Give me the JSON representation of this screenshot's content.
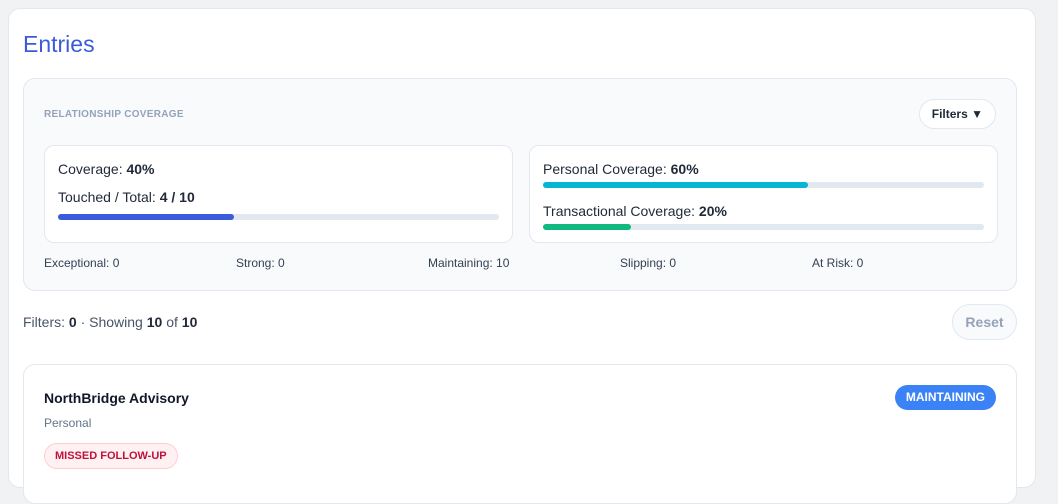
{
  "title": "Entries",
  "coverage": {
    "heading": "RELATIONSHIP COVERAGE",
    "filters_label": "Filters ▼",
    "coverage_label": "Coverage: ",
    "coverage_value": "40%",
    "coverage_pct": 40,
    "touched_label": "Touched / Total: ",
    "touched_value": "4 / 10",
    "personal_label": "Personal Coverage: ",
    "personal_value": "60%",
    "personal_pct": 60,
    "transactional_label": "Transactional Coverage: ",
    "transactional_value": "20%",
    "transactional_pct": 20,
    "colors": {
      "coverage": "#3b5bdb",
      "personal": "#06b6d4",
      "transactional": "#10b981"
    },
    "stats": [
      "Exceptional: 0",
      "Strong: 0",
      "Maintaining: 10",
      "Slipping: 0",
      "At Risk: 0"
    ]
  },
  "summary": {
    "filters_label": "Filters: ",
    "filters_count": "0",
    "showing_label": " · Showing ",
    "shown": "10",
    "of_label": " of ",
    "total": "10"
  },
  "reset_label": "Reset",
  "entries": [
    {
      "name": "NorthBridge Advisory",
      "type": "Personal",
      "tag": "MISSED FOLLOW-UP",
      "status": "MAINTAINING"
    }
  ]
}
